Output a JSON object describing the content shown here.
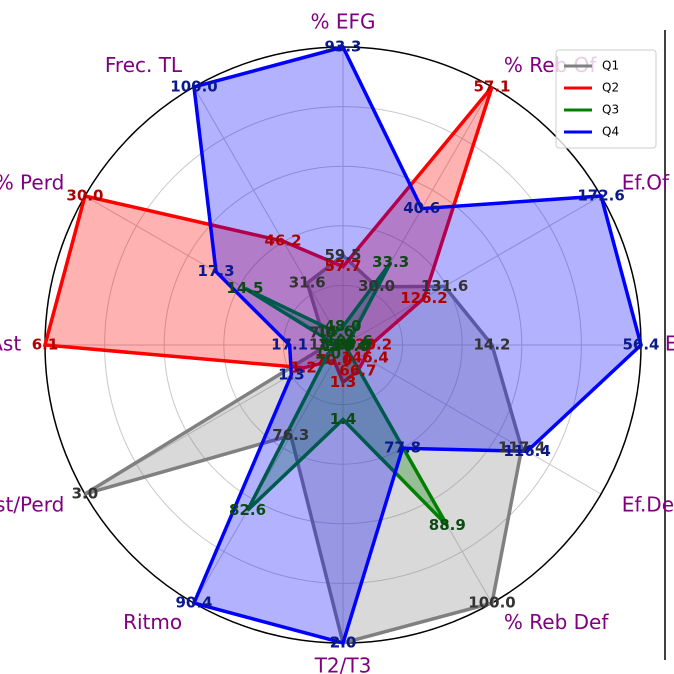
{
  "chart_data": {
    "type": "radar",
    "categories": [
      "% EFG",
      "% Reb Of",
      "Ef.Of",
      "Ef Neta",
      "Ef.Def",
      "% Reb Def",
      "T2/T3",
      "Ritmo",
      "Ast/Perd",
      "% Ast",
      "% Perd",
      "Frec. TL"
    ],
    "rlims": [
      [
        45,
        93.3
      ],
      [
        22.1,
        57.1
      ],
      [
        105,
        172.6
      ],
      [
        -28,
        56.4
      ],
      [
        150.5,
        102.7
      ],
      [
        63,
        100
      ],
      [
        1.2,
        2
      ],
      [
        68.7,
        90.4
      ],
      [
        0.875,
        3
      ],
      [
        19.5,
        6.1
      ],
      [
        5,
        30
      ],
      [
        10,
        100
      ]
    ],
    "grid": true,
    "legend": "upper right",
    "series": [
      {
        "name": "Q1",
        "color": "#808080",
        "label_color": "#333333",
        "values": [
          59.5,
          30,
          131.6,
          14.2,
          117.4,
          100,
          2,
          76.3,
          3,
          18.8,
          7,
          31.6
        ],
        "value_labels": [
          "59.5",
          "30.0",
          "131.6",
          "14.2",
          "117.4",
          "100.0",
          "2.0",
          "76.3",
          "3.0",
          "18.8",
          "7.0",
          "31.6"
        ]
      },
      {
        "name": "Q2",
        "color": "#ff0000",
        "label_color": "#b00000",
        "values": [
          57.7,
          57.1,
          126.2,
          -20.2,
          146.4,
          66.7,
          1.3,
          70,
          1.2,
          6.1,
          30,
          46.2
        ],
        "value_labels": [
          "57.7",
          "57.1",
          "126.2",
          "-20.2",
          "146.4",
          "66.7",
          "1.3",
          "70.0",
          "1.2",
          "6.1",
          "30.0",
          "46.2"
        ]
      },
      {
        "name": "Q3",
        "color": "#008000",
        "label_color": "#0b4a12",
        "values": [
          48,
          33.3,
          106.6,
          -26,
          150,
          88.9,
          1.4,
          82.6,
          1,
          19.2,
          14.5,
          14.6
        ],
        "value_labels": [
          "48.0",
          "33.3",
          "106.6",
          "-26.0",
          "150.0",
          "88.9",
          "1.4",
          "82.6",
          "1.0",
          "19.2",
          "14.5",
          "14.6"
        ]
      },
      {
        "name": "Q4",
        "color": "#0000ff",
        "label_color": "#0a1a8c",
        "values": [
          93.3,
          40.6,
          172.6,
          56.4,
          116.4,
          77.8,
          2,
          90.4,
          1.3,
          17.1,
          17.3,
          100
        ],
        "value_labels": [
          "93.3",
          "40.6",
          "172.6",
          "56.4",
          "116.4",
          "77.8",
          "2.0",
          "90.4",
          "1.3",
          "17.1",
          "17.3",
          "100.0"
        ]
      }
    ]
  }
}
